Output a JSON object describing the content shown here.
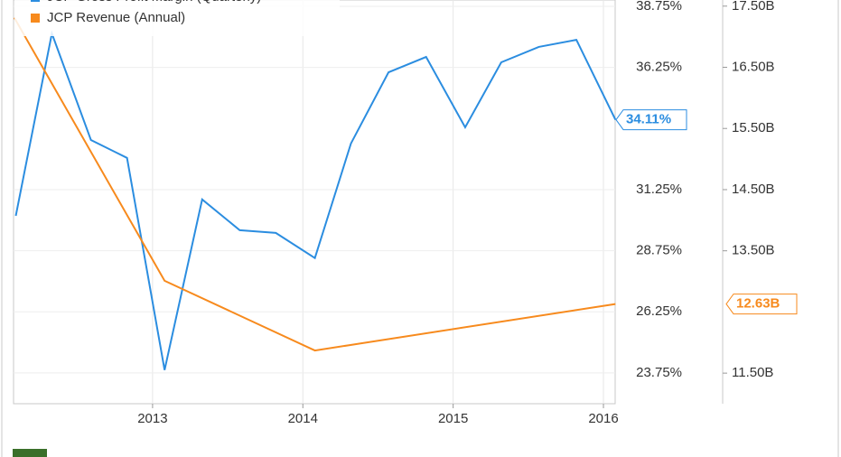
{
  "chart_data": {
    "type": "line",
    "series": [
      {
        "name": "JCP Gross Profit Margin (Quarterly)",
        "color": "#2b8de0",
        "axis": "y",
        "x": [
          2012.09,
          2012.33,
          2012.59,
          2012.83,
          2013.08,
          2013.33,
          2013.58,
          2013.82,
          2014.08,
          2014.32,
          2014.57,
          2014.82,
          2015.08,
          2015.32,
          2015.57,
          2015.82,
          2016.08
        ],
        "values": [
          30.18,
          37.64,
          33.28,
          32.55,
          23.87,
          30.85,
          29.59,
          29.48,
          28.45,
          33.14,
          36.05,
          36.68,
          33.8,
          36.46,
          37.09,
          37.38,
          34.11
        ],
        "end_label": "34.11%"
      },
      {
        "name": "JCP Revenue (Annual)",
        "color": "#f78a1d",
        "axis": "y2",
        "x": [
          2012.08,
          2013.08,
          2014.08,
          2016.08
        ],
        "values": [
          17.31,
          13.01,
          11.87,
          12.63
        ],
        "end_label": "12.63B"
      }
    ],
    "xlim": [
      2012.075,
      2016.078
    ],
    "xticks": [
      2013,
      2014,
      2015,
      2016
    ],
    "ylim": [
      22.49,
      39.01
    ],
    "yticks": [
      {
        "value": 23.75,
        "label": "23.75%"
      },
      {
        "value": 26.25,
        "label": "26.25%"
      },
      {
        "value": 28.75,
        "label": "28.75%"
      },
      {
        "value": 31.25,
        "label": "31.25%"
      },
      {
        "value": 36.25,
        "label": "36.25%"
      },
      {
        "value": 38.75,
        "label": "38.75%"
      }
    ],
    "y2lim": [
      11.0,
      17.6
    ],
    "y2ticks": [
      {
        "value": 11.5,
        "label": "11.50B"
      },
      {
        "value": 13.5,
        "label": "13.50B"
      },
      {
        "value": 14.5,
        "label": "14.50B"
      },
      {
        "value": 15.5,
        "label": "15.50B"
      },
      {
        "value": 16.5,
        "label": "16.50B"
      },
      {
        "value": 17.5,
        "label": "17.50B"
      }
    ],
    "grid": true
  }
}
